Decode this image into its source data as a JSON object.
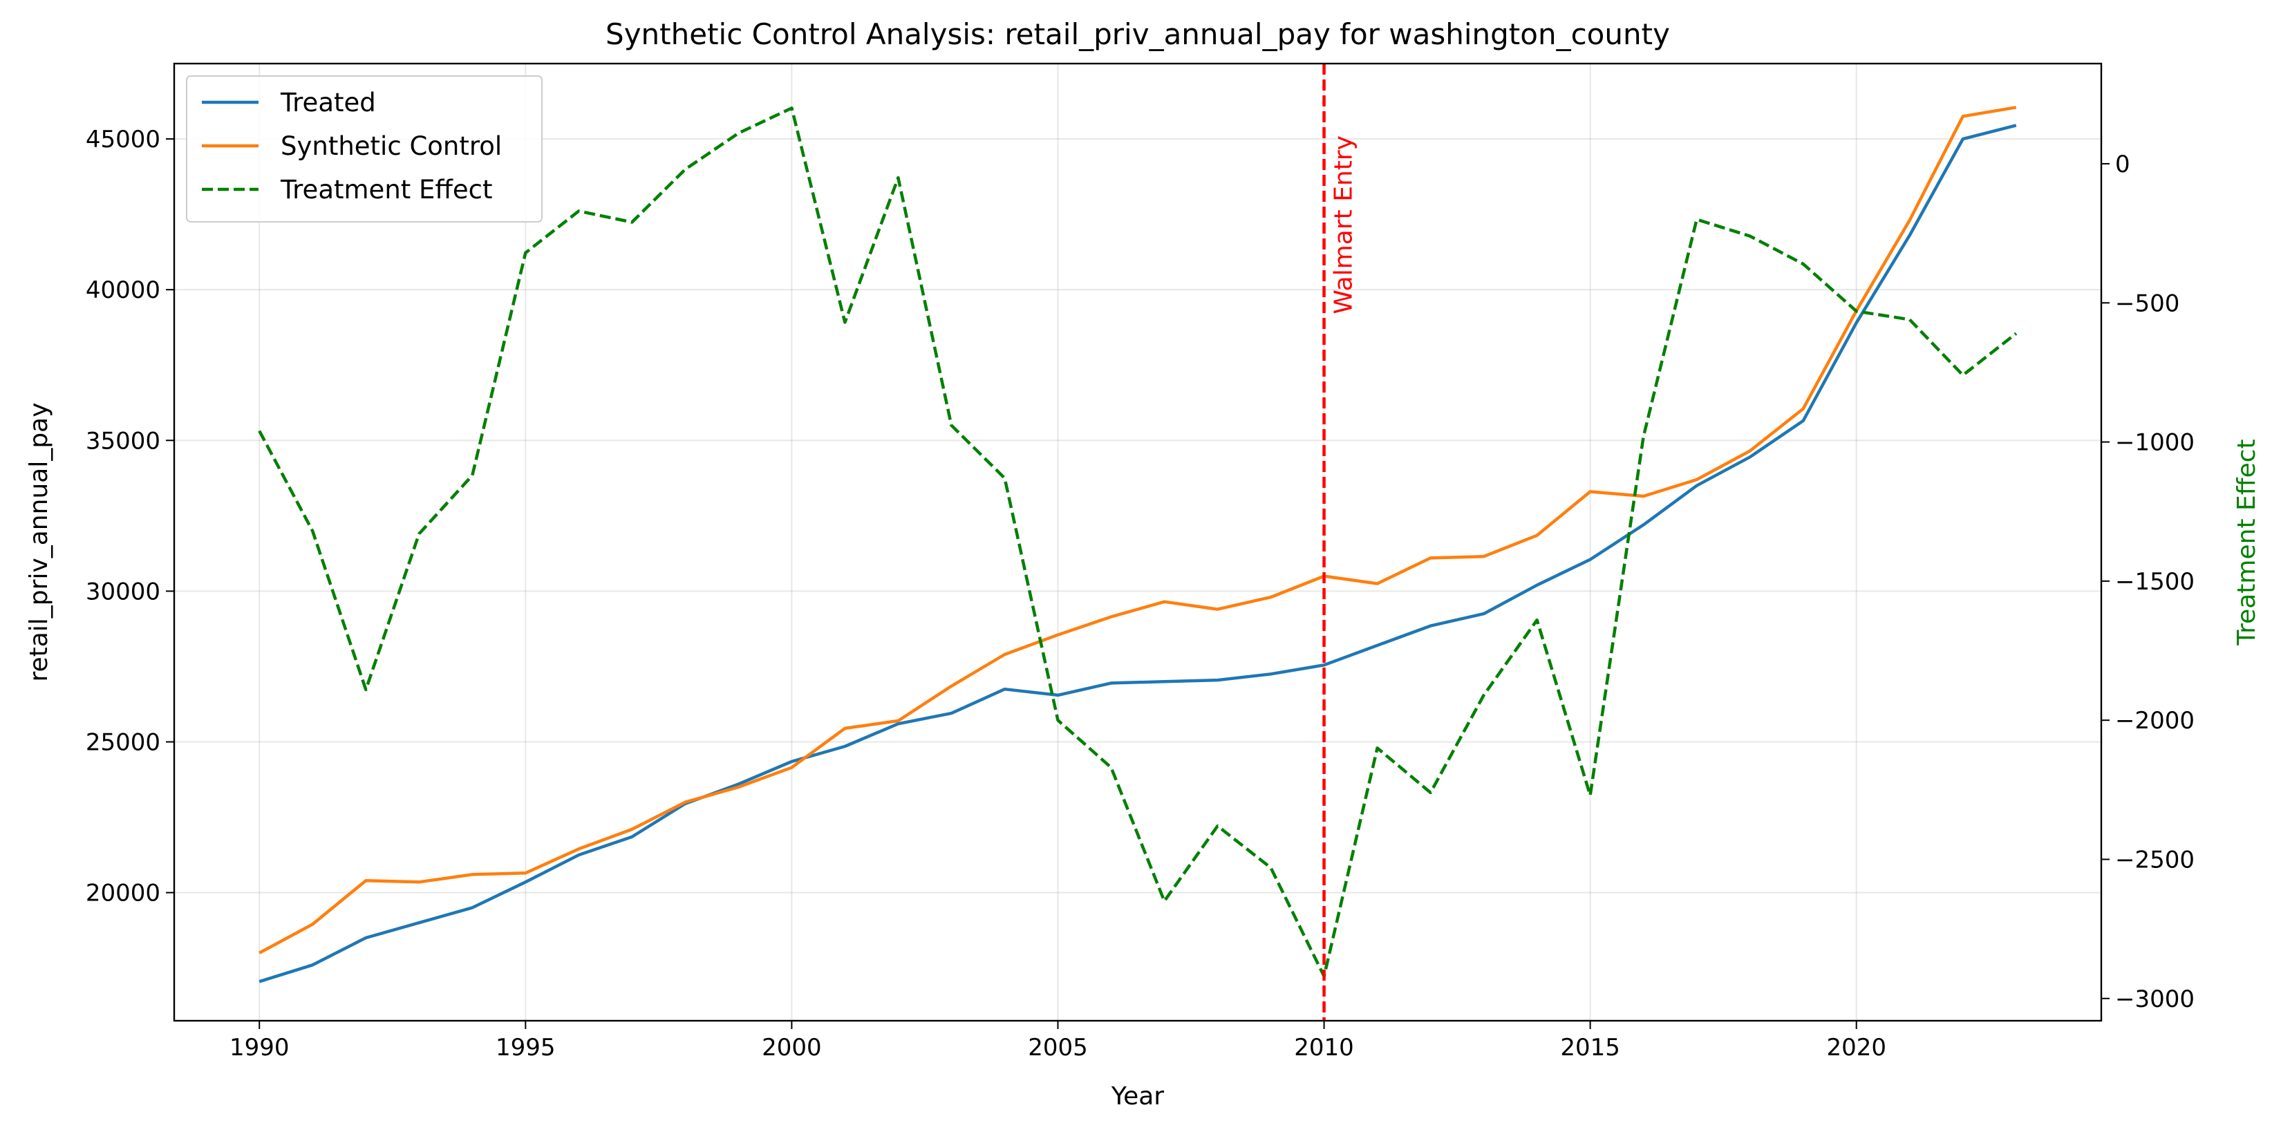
{
  "chart_data": {
    "type": "line",
    "title": "Synthetic Control Analysis: retail_priv_annual_pay for washington_county",
    "xlabel": "Year",
    "ylabel": "retail_priv_annual_pay",
    "y2label": "Treatment Effect",
    "xlim": [
      1988.4,
      2024.6
    ],
    "ylim": [
      15750,
      47500
    ],
    "y2lim": [
      -3080,
      360
    ],
    "xticks": [
      1990,
      1995,
      2000,
      2005,
      2010,
      2015,
      2020
    ],
    "yticks": [
      20000,
      25000,
      30000,
      35000,
      40000,
      45000
    ],
    "y2ticks": [
      -3000,
      -2500,
      -2000,
      -1500,
      -1000,
      -500,
      0
    ],
    "grid": true,
    "legend_position": "top-left",
    "annotation": {
      "x": 2010,
      "label": "Walmart Entry",
      "color": "#ff0000"
    },
    "x": [
      1990,
      1991,
      1992,
      1993,
      1994,
      1995,
      1996,
      1997,
      1998,
      1999,
      2000,
      2001,
      2002,
      2003,
      2004,
      2005,
      2006,
      2007,
      2008,
      2009,
      2010,
      2011,
      2012,
      2013,
      2014,
      2015,
      2016,
      2017,
      2018,
      2019,
      2020,
      2021,
      2022,
      2023
    ],
    "series": [
      {
        "name": "Treated",
        "axis": "left",
        "color": "#1f77b4",
        "dash": "solid",
        "values": [
          17050,
          17600,
          18500,
          19000,
          19500,
          20350,
          21250,
          21850,
          22950,
          23600,
          24350,
          24850,
          25600,
          25950,
          26750,
          26550,
          26950,
          27000,
          27050,
          27250,
          27550,
          28200,
          28850,
          29250,
          30200,
          31050,
          32200,
          33500,
          34450,
          35650,
          38900,
          41800,
          45000,
          45450
        ]
      },
      {
        "name": "Synthetic Control",
        "axis": "left",
        "color": "#ff7f0e",
        "dash": "solid",
        "values": [
          18000,
          18950,
          20400,
          20350,
          20600,
          20650,
          21450,
          22100,
          23000,
          23500,
          24150,
          25450,
          25700,
          26850,
          27900,
          28550,
          29150,
          29650,
          29400,
          29800,
          30500,
          30250,
          31100,
          31150,
          31850,
          33300,
          33150,
          33700,
          34650,
          36050,
          39300,
          42300,
          45750,
          46050
        ]
      },
      {
        "name": "Treatment Effect",
        "axis": "right",
        "color": "#008000",
        "dash": "dashed",
        "values": [
          -960,
          -1320,
          -1890,
          -1330,
          -1120,
          -320,
          -170,
          -210,
          -20,
          110,
          200,
          -570,
          -50,
          -940,
          -1130,
          -2000,
          -2170,
          -2650,
          -2380,
          -2530,
          -2920,
          -2100,
          -2260,
          -1910,
          -1640,
          -2270,
          -980,
          -200,
          -260,
          -360,
          -530,
          -560,
          -760,
          -610
        ]
      }
    ]
  }
}
